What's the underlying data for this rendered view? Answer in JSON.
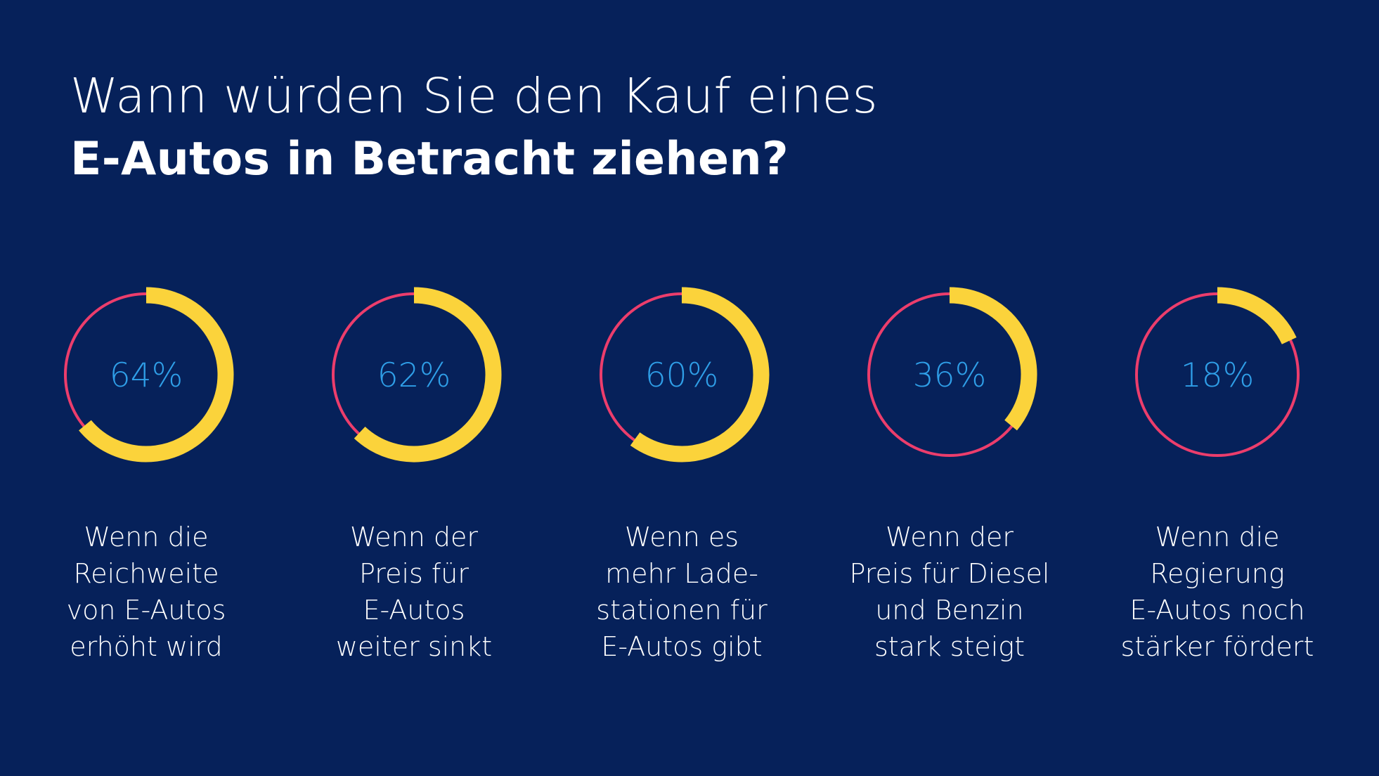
{
  "title": {
    "line1": "Wann würden Sie den Kauf eines",
    "line2": "E-Autos in Betracht ziehen?"
  },
  "colors": {
    "background": "#06215a",
    "ring": "#ec3d6c",
    "arc": "#fbd33b",
    "percent_text": "#2f9fe8",
    "text": "#ffffff"
  },
  "chart_data": {
    "type": "donut",
    "unit": "%",
    "items": [
      {
        "value": 64,
        "label": "64%",
        "caption": [
          "Wenn die",
          "Reichweite",
          "von E-Autos",
          "erhöht wird"
        ]
      },
      {
        "value": 62,
        "label": "62%",
        "caption": [
          "Wenn der",
          "Preis für",
          "E-Autos",
          "weiter sinkt"
        ]
      },
      {
        "value": 60,
        "label": "60%",
        "caption": [
          "Wenn es",
          "mehr Lade-",
          "stationen für",
          "E-Autos gibt"
        ]
      },
      {
        "value": 36,
        "label": "36%",
        "caption": [
          "Wenn der",
          "Preis für Diesel",
          "und Benzin",
          "stark steigt"
        ]
      },
      {
        "value": 18,
        "label": "18%",
        "caption": [
          "Wenn die",
          "Regierung",
          "E-Autos noch",
          "stärker fördert"
        ]
      }
    ]
  }
}
